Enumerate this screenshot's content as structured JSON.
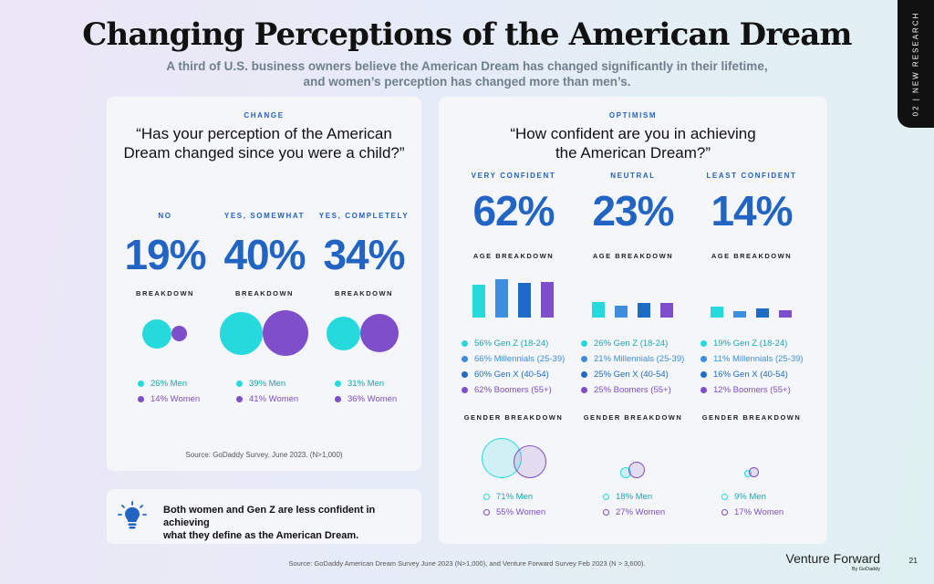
{
  "title": "Changing Perceptions of the American Dream",
  "subtitle": {
    "line1": "A third of U.S. business owners believe the American Dream has changed significantly in their lifetime,",
    "line2": "and women’s perception has changed more than men’s."
  },
  "side_tab": "02 | NEW RESEARCH",
  "change": {
    "label": "CHANGE",
    "question": "“Has your perception of the American Dream changed since you were a child?”",
    "breakdown_label": "BREAKDOWN",
    "answers": [
      {
        "label": "NO",
        "value": "19%",
        "men": "26% Men",
        "women": "14% Women",
        "men_pct": 26,
        "women_pct": 14
      },
      {
        "label": "YES, SOMEWHAT",
        "value": "40%",
        "men": "39% Men",
        "women": "41% Women",
        "men_pct": 39,
        "women_pct": 41
      },
      {
        "label": "YES, COMPLETELY",
        "value": "34%",
        "men": "31% Men",
        "women": "36% Women",
        "men_pct": 31,
        "women_pct": 36
      }
    ],
    "source": "Source: GoDaddy Survey. June 2023. (N>1,000)"
  },
  "optimism": {
    "label": "OPTIMISM",
    "question_line1": "“How confident are you in achieving",
    "question_line2": "the American Dream?”",
    "age_label": "AGE BREAKDOWN",
    "gender_label": "GENDER BREAKDOWN",
    "groups": [
      {
        "label": "VERY CONFIDENT",
        "value": "62%",
        "ages": [
          "56% Gen Z (18-24)",
          "66% Millennials (25-39)",
          "60% Gen X (40-54)",
          "62% Boomers (55+)"
        ],
        "age_values": [
          56,
          66,
          60,
          62
        ],
        "men": "71% Men",
        "women": "55% Women",
        "men_pct": 71,
        "women_pct": 55
      },
      {
        "label": "NEUTRAL",
        "value": "23%",
        "ages": [
          "26% Gen Z (18-24)",
          "21% Millennials (25-39)",
          "25% Gen X (40-54)",
          "25% Boomers (55+)"
        ],
        "age_values": [
          26,
          21,
          25,
          25
        ],
        "men": "18% Men",
        "women": "27% Women",
        "men_pct": 18,
        "women_pct": 27
      },
      {
        "label": "LEAST CONFIDENT",
        "value": "14%",
        "ages": [
          "19% Gen Z (18-24)",
          "11% Millennials (25-39)",
          "16% Gen X (40-54)",
          "12% Boomers (55+)"
        ],
        "age_values": [
          19,
          11,
          16,
          12
        ],
        "men": "9% Men",
        "women": "17% Women",
        "men_pct": 9,
        "women_pct": 17
      }
    ]
  },
  "note": {
    "line1": "Both women and Gen Z are less confident in achieving",
    "line2": "what they define as the American Dream.",
    "icon": "lightbulb-icon"
  },
  "footer": {
    "source": "Source: GoDaddy American Dream Survey June 2023 (N>1,000), and Venture Forward Survey Feb 2023 (N > 3,600).",
    "brand": "Venture Forward",
    "brand_sub": "By GoDaddy",
    "page": "21"
  },
  "colors": {
    "blue": "#2164c4",
    "men": "#26d9dc",
    "women": "#7e4ecb",
    "genz": "#26d9dc",
    "millennials": "#3d8ede",
    "genx": "#1e6bc6",
    "boomers": "#7e4ecb"
  }
}
